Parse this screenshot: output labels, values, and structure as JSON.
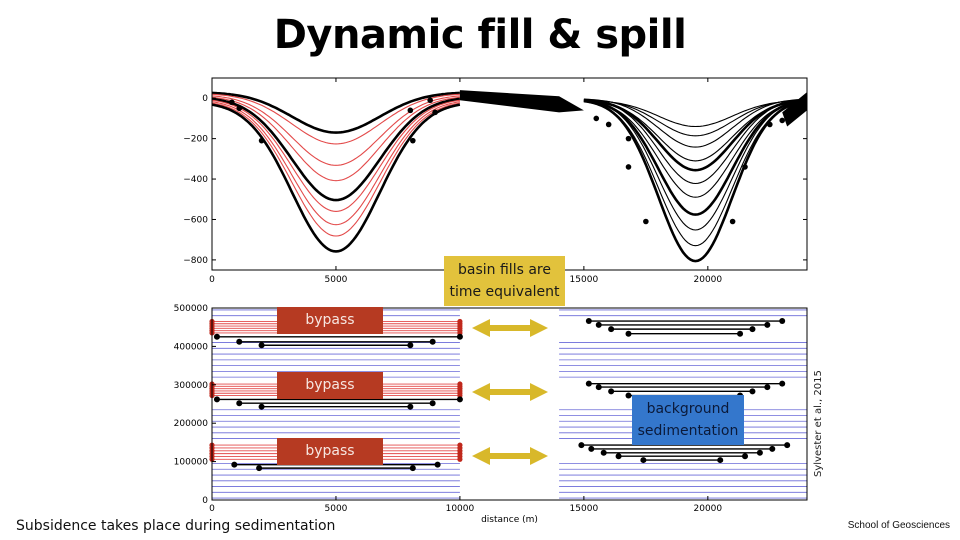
{
  "slide": {
    "title": "Dynamic fill & spill",
    "callout_line1": "basin fills are",
    "callout_line2": "time equivalent",
    "background_line1": "background",
    "background_line2": "sedimentation",
    "bypass_label": "bypass",
    "citation": "Sylvester et al., 2015",
    "footer_left": "Subsidence takes place during sedimentation",
    "footer_right": "School of Geosciences"
  },
  "colors": {
    "red_surface": "#e34a4a",
    "blue_line": "#6a6ad8",
    "callout_yellow": "#e2c23c",
    "background_blue": "#3477cc",
    "bypass_red": "#b63a22",
    "arrow_yellow": "#d8b82a"
  },
  "chart_data": [
    {
      "type": "line",
      "title": "",
      "xlabel": "",
      "ylabel": "",
      "xlim": [
        0,
        24000
      ],
      "ylim": [
        -850,
        100
      ],
      "xticks": [
        0,
        5000,
        10000,
        15000,
        20000
      ],
      "yticks": [
        0,
        -200,
        -400,
        -600,
        -800
      ],
      "basin1": {
        "center_x": 5000,
        "width_x": 2500,
        "left_edge_x": 0,
        "right_edge_x": 10000,
        "depths": [
          200,
          250,
          350,
          420,
          510,
          560,
          620,
          670,
          740
        ]
      },
      "basin2": {
        "center_x": 19500,
        "width_x": 2100,
        "left_edge_x": 15000,
        "right_edge_x": 24000,
        "depths": [
          130,
          180,
          240,
          300,
          350,
          420,
          480,
          570,
          650,
          720,
          800
        ]
      },
      "grid": false,
      "legend": "none"
    },
    {
      "type": "scatter",
      "title": "",
      "xlabel": "distance (m)",
      "ylabel": "",
      "xlim": [
        0,
        24000
      ],
      "ylim": [
        0,
        500000
      ],
      "xticks": [
        0,
        5000,
        10000,
        15000,
        20000
      ],
      "yticks": [
        0,
        100000,
        200000,
        300000,
        400000,
        500000
      ],
      "blue_timelines_y": [
        5000,
        20000,
        35000,
        50000,
        65000,
        80000,
        95000,
        160000,
        175000,
        190000,
        205000,
        220000,
        235000,
        320000,
        335000,
        350000,
        365000,
        380000,
        395000,
        410000,
        480000,
        495000
      ],
      "left_fill_lines": [
        {
          "y": 425000,
          "x0": 200,
          "x1": 10000
        },
        {
          "y": 412000,
          "x0": 1100,
          "x1": 8900
        },
        {
          "y": 403000,
          "x0": 2000,
          "x1": 8000
        },
        {
          "y": 262000,
          "x0": 200,
          "x1": 10000
        },
        {
          "y": 252000,
          "x0": 1100,
          "x1": 8900
        },
        {
          "y": 243000,
          "x0": 2000,
          "x1": 8000
        },
        {
          "y": 92000,
          "x0": 900,
          "x1": 9100
        },
        {
          "y": 83000,
          "x0": 1900,
          "x1": 8100
        }
      ],
      "right_fill_lines": [
        {
          "y": 466000,
          "x0": 15200,
          "x1": 23000
        },
        {
          "y": 456000,
          "x0": 15600,
          "x1": 22400
        },
        {
          "y": 445000,
          "x0": 16100,
          "x1": 21800
        },
        {
          "y": 433000,
          "x0": 16800,
          "x1": 21300
        },
        {
          "y": 303000,
          "x0": 15200,
          "x1": 23000
        },
        {
          "y": 294000,
          "x0": 15600,
          "x1": 22400
        },
        {
          "y": 283000,
          "x0": 16100,
          "x1": 21800
        },
        {
          "y": 272000,
          "x0": 16800,
          "x1": 21300
        },
        {
          "y": 143000,
          "x0": 14900,
          "x1": 23200
        },
        {
          "y": 133000,
          "x0": 15300,
          "x1": 22600
        },
        {
          "y": 123000,
          "x0": 15800,
          "x1": 22100
        },
        {
          "y": 114000,
          "x0": 16400,
          "x1": 21500
        },
        {
          "y": 104000,
          "x0": 17400,
          "x1": 20500
        }
      ],
      "red_bands": [
        {
          "y0": 435000,
          "y1": 465000
        },
        {
          "y0": 272000,
          "y1": 302000
        },
        {
          "y0": 106000,
          "y1": 143000
        }
      ],
      "grid": false,
      "legend": "none"
    }
  ]
}
